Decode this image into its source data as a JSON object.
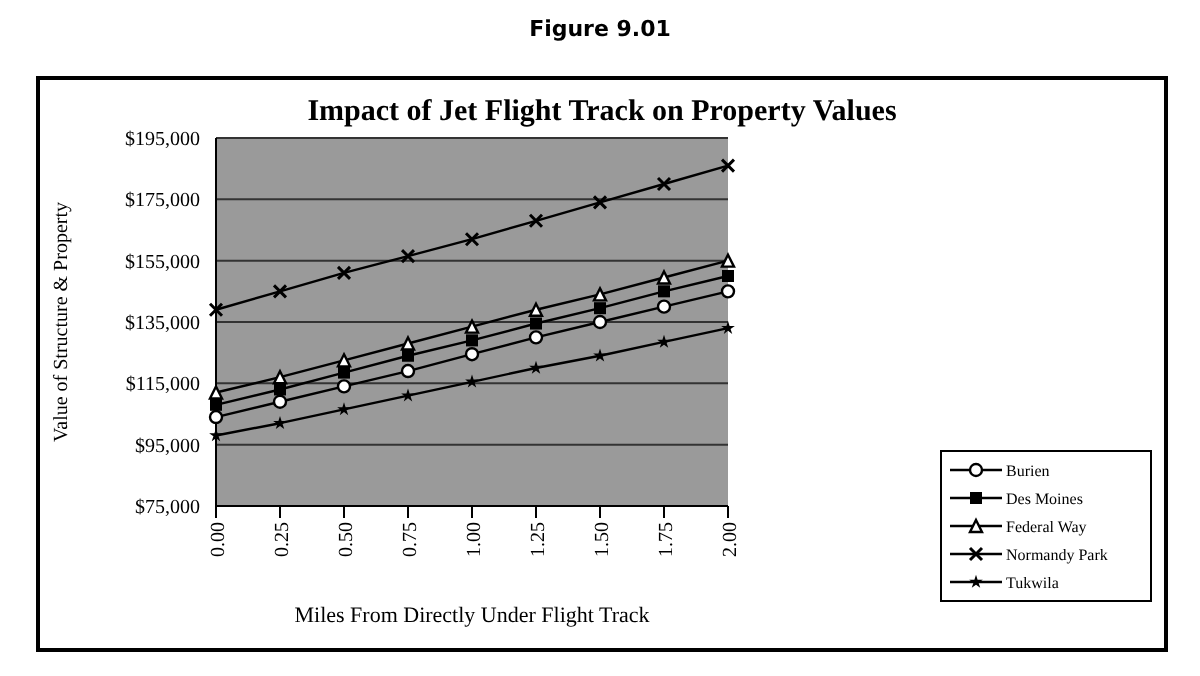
{
  "chart_data": {
    "type": "line",
    "title": "Impact of Jet Flight Track on Property Values",
    "annotations": [
      "Figure 9.01"
    ],
    "xlabel": "Miles From Directly Under Flight Track",
    "ylabel": "Value of Structure & Property",
    "x": [
      0,
      0.25,
      0.5,
      0.75,
      1,
      1.25,
      1.5,
      1.75,
      2
    ],
    "series": [
      {
        "name": "Burien",
        "color": "#000000",
        "marker": "circle",
        "values": [
          104000,
          109000,
          114000,
          119000,
          124500,
          130000,
          135000,
          140000,
          145000
        ]
      },
      {
        "name": "Des Moines",
        "color": "#000000",
        "marker": "square",
        "values": [
          108000,
          113000,
          118500,
          124000,
          129000,
          134500,
          139500,
          145000,
          150000
        ]
      },
      {
        "name": "Federal Way",
        "color": "#000000",
        "marker": "triangle",
        "values": [
          112000,
          117000,
          122500,
          128000,
          133500,
          139000,
          144000,
          149500,
          155000
        ]
      },
      {
        "name": "Normandy Park",
        "color": "#000000",
        "marker": "cross",
        "values": [
          139000,
          145000,
          151000,
          156500,
          162000,
          168000,
          174000,
          180000,
          186000
        ]
      },
      {
        "name": "Tukwila",
        "color": "#000000",
        "marker": "star",
        "values": [
          98000,
          102000,
          106500,
          111000,
          115500,
          120000,
          124000,
          128500,
          133000
        ]
      }
    ],
    "xlim": [
      0,
      2
    ],
    "xticks": [
      {
        "value": 0,
        "label": "0.00"
      },
      {
        "value": 0.25,
        "label": "0.25"
      },
      {
        "value": 0.5,
        "label": "0.50"
      },
      {
        "value": 0.75,
        "label": "0.75"
      },
      {
        "value": 1,
        "label": "1.00"
      },
      {
        "value": 1.25,
        "label": "1.25"
      },
      {
        "value": 1.5,
        "label": "1.50"
      },
      {
        "value": 1.75,
        "label": "1.75"
      },
      {
        "value": 2,
        "label": "2.00"
      }
    ],
    "ylim": [
      75000,
      195000
    ],
    "yticks": [
      {
        "value": 75000,
        "label": "$75,000"
      },
      {
        "value": 95000,
        "label": "$95,000"
      },
      {
        "value": 115000,
        "label": "$115,000"
      },
      {
        "value": 135000,
        "label": "$135,000"
      },
      {
        "value": 155000,
        "label": "$155,000"
      },
      {
        "value": 175000,
        "label": "$175,000"
      },
      {
        "value": 195000,
        "label": "$195,000"
      }
    ],
    "grid": "y",
    "legend": "bottom right"
  }
}
